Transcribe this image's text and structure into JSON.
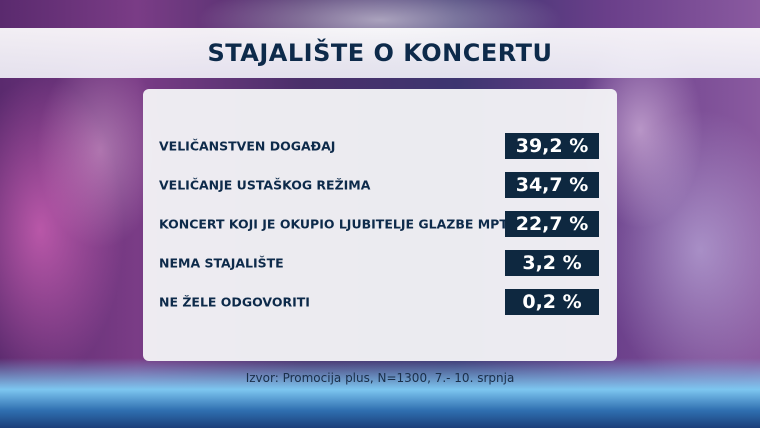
{
  "title": "STAJALIŠTE O KONCERTU",
  "source": "Izvor: Promocija plus, N=1300, 7.- 10. srpnja",
  "colors": {
    "panel": "#f2f2f6",
    "value_box": "#0e2840",
    "text": "#0d2a4a"
  },
  "chart_data": {
    "type": "table",
    "title": "STAJALIŠTE O KONCERTU",
    "categories": [
      "VELIČANSTVEN DOGAĐAJ",
      "VELIČANJE USTAŠKOG REŽIMA",
      "KONCERT KOJI JE OKUPIO LJUBITELJE GLAZBE MPT",
      "NEMA STAJALIŠTE",
      "NE ŽELE ODGOVORITI"
    ],
    "values": [
      39.2,
      34.7,
      22.7,
      3.2,
      0.2
    ],
    "value_labels": [
      "39,2 %",
      "34,7 %",
      "22,7 %",
      "3,2 %",
      "0,2 %"
    ],
    "rows": [
      {
        "label": "VELIČANSTVEN DOGAĐAJ",
        "value": "39,2 %"
      },
      {
        "label": "VELIČANJE USTAŠKOG REŽIMA",
        "value": "34,7 %"
      },
      {
        "label": "KONCERT KOJI JE OKUPIO LJUBITELJE GLAZBE MPT",
        "value": "22,7 %"
      },
      {
        "label": "NEMA STAJALIŠTE",
        "value": "3,2 %"
      },
      {
        "label": "NE ŽELE ODGOVORITI",
        "value": "0,2 %"
      }
    ]
  }
}
